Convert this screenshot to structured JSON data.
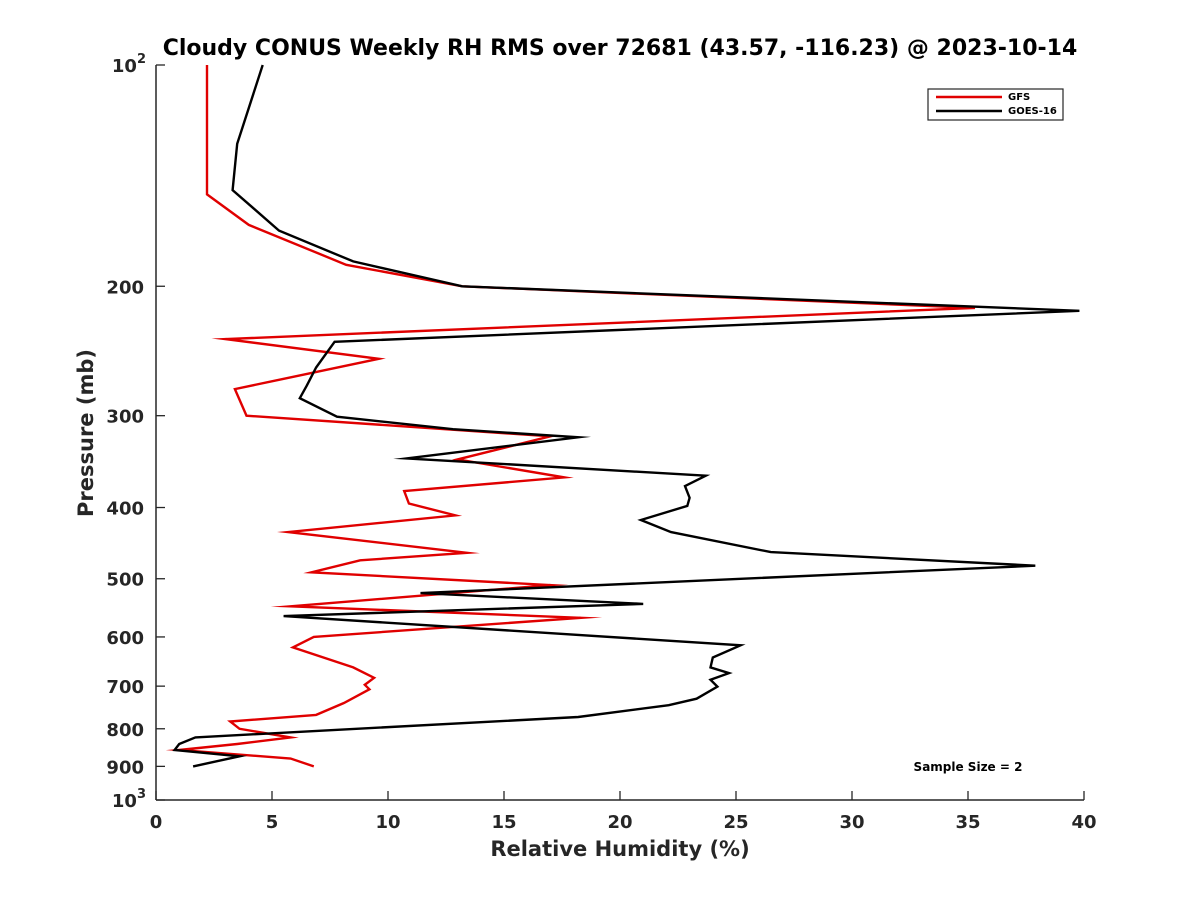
{
  "chart_data": {
    "type": "line",
    "title": "Cloudy CONUS Weekly RH RMS over 72681 (43.57, -116.23) @ 2023-10-14",
    "xlabel": "Relative Humidity (%)",
    "ylabel": "Pressure (mb)",
    "xlim": [
      0,
      40
    ],
    "ylim": [
      100,
      1000
    ],
    "yscale": "log",
    "y_reversed": true,
    "grid": false,
    "legend_position": "top-right",
    "x_ticks": [
      0,
      5,
      10,
      15,
      20,
      25,
      30,
      35,
      40
    ],
    "y_ticks": [
      {
        "value": 100,
        "base": "10",
        "exp": "2"
      },
      {
        "value": 200,
        "label": "200"
      },
      {
        "value": 300,
        "label": "300"
      },
      {
        "value": 400,
        "label": "400"
      },
      {
        "value": 500,
        "label": "500"
      },
      {
        "value": 600,
        "label": "600"
      },
      {
        "value": 700,
        "label": "700"
      },
      {
        "value": 800,
        "label": "800"
      },
      {
        "value": 900,
        "label": "900"
      },
      {
        "value": 1000,
        "base": "10",
        "exp": "3"
      }
    ],
    "annotation": "Sample Size = 2",
    "series": [
      {
        "name": "GFS",
        "color": "#e00000",
        "points": [
          [
            2.2,
            100
          ],
          [
            2.2,
            150
          ],
          [
            4.0,
            165
          ],
          [
            8.2,
            187
          ],
          [
            13.2,
            200
          ],
          [
            35.3,
            214
          ],
          [
            3.0,
            236
          ],
          [
            9.6,
            251
          ],
          [
            3.4,
            276
          ],
          [
            3.9,
            300
          ],
          [
            17.0,
            320
          ],
          [
            13.0,
            344
          ],
          [
            17.6,
            364
          ],
          [
            10.7,
            380
          ],
          [
            10.9,
            395
          ],
          [
            12.9,
            410
          ],
          [
            5.7,
            432
          ],
          [
            13.4,
            461
          ],
          [
            8.8,
            472
          ],
          [
            6.7,
            490
          ],
          [
            17.0,
            510
          ],
          [
            5.8,
            545
          ],
          [
            18.3,
            565
          ],
          [
            6.8,
            600
          ],
          [
            5.9,
            620
          ],
          [
            8.5,
            660
          ],
          [
            9.4,
            682
          ],
          [
            9.0,
            697
          ],
          [
            9.2,
            707
          ],
          [
            8.1,
            738
          ],
          [
            6.9,
            766
          ],
          [
            3.2,
            782
          ],
          [
            3.6,
            800
          ],
          [
            5.8,
            822
          ],
          [
            3.5,
            839
          ],
          [
            1.0,
            855
          ],
          [
            5.8,
            878
          ],
          [
            6.8,
            900
          ]
        ]
      },
      {
        "name": "GOES-16",
        "color": "#000000",
        "points": [
          [
            4.6,
            100
          ],
          [
            3.5,
            128
          ],
          [
            3.3,
            148
          ],
          [
            5.3,
            168
          ],
          [
            8.5,
            185
          ],
          [
            13.2,
            200
          ],
          [
            39.8,
            216
          ],
          [
            7.7,
            238
          ],
          [
            6.9,
            258
          ],
          [
            6.5,
            273
          ],
          [
            6.2,
            284
          ],
          [
            7.8,
            301
          ],
          [
            12.8,
            313
          ],
          [
            18.2,
            321
          ],
          [
            10.8,
            343
          ],
          [
            23.7,
            362
          ],
          [
            22.8,
            374
          ],
          [
            23.0,
            388
          ],
          [
            22.9,
            398
          ],
          [
            20.9,
            416
          ],
          [
            22.2,
            432
          ],
          [
            26.5,
            460
          ],
          [
            37.9,
            480
          ],
          [
            11.4,
            523
          ],
          [
            21.0,
            541
          ],
          [
            5.5,
            562
          ],
          [
            25.2,
            616
          ],
          [
            24.0,
            640
          ],
          [
            23.9,
            660
          ],
          [
            24.7,
            672
          ],
          [
            23.9,
            686
          ],
          [
            24.2,
            701
          ],
          [
            23.3,
            728
          ],
          [
            22.1,
            743
          ],
          [
            18.2,
            771
          ],
          [
            1.7,
            822
          ],
          [
            1.0,
            839
          ],
          [
            0.8,
            855
          ],
          [
            3.6,
            872
          ],
          [
            1.6,
            900
          ]
        ]
      }
    ]
  }
}
